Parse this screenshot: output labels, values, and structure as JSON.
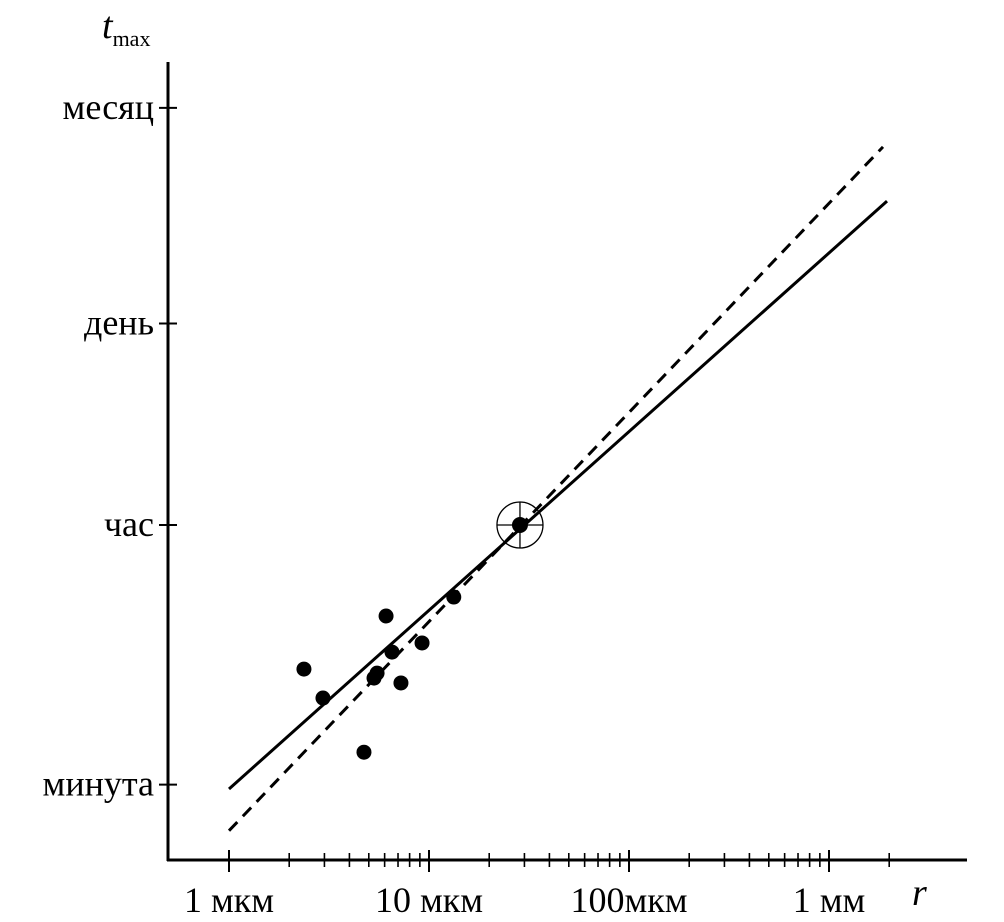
{
  "chart_data": {
    "type": "scatter",
    "title": "",
    "xlabel": "r",
    "ylabel_main": "t",
    "ylabel_sub": "max",
    "xscale": "log",
    "yscale": "log",
    "x_unit": "мкм",
    "y_unit": "s",
    "xlim": [
      0.5,
      4000
    ],
    "ylim": [
      18,
      8000000
    ],
    "grid": false,
    "x_ticks": [
      {
        "value": 1,
        "label": "1 мкм"
      },
      {
        "value": 10,
        "label": "10 мкм"
      },
      {
        "value": 100,
        "label": "100мкм"
      },
      {
        "value": 1000,
        "label": "1 мм"
      }
    ],
    "y_ticks": [
      {
        "value": 60,
        "label": "минута"
      },
      {
        "value": 3600,
        "label": "час"
      },
      {
        "value": 86400,
        "label": "день"
      },
      {
        "value": 2592000,
        "label": "месяц"
      }
    ],
    "points": [
      {
        "x": 2.37,
        "y": 371
      },
      {
        "x": 2.95,
        "y": 235
      },
      {
        "x": 4.73,
        "y": 100
      },
      {
        "x": 6.1,
        "y": 857
      },
      {
        "x": 5.31,
        "y": 322
      },
      {
        "x": 5.5,
        "y": 348
      },
      {
        "x": 6.53,
        "y": 485
      },
      {
        "x": 7.24,
        "y": 298
      },
      {
        "x": 9.23,
        "y": 560
      },
      {
        "x": 13.3,
        "y": 1156
      }
    ],
    "highlighted_point": {
      "x": 28.5,
      "y": 3600
    },
    "series": [
      {
        "name": "fit-solid",
        "style": "solid",
        "x": [
          1,
          1950
        ],
        "y": [
          56,
          595000
        ]
      },
      {
        "name": "fit-dashed",
        "style": "dashed",
        "x": [
          1,
          1862
        ],
        "y": [
          29,
          1400000
        ]
      }
    ]
  }
}
